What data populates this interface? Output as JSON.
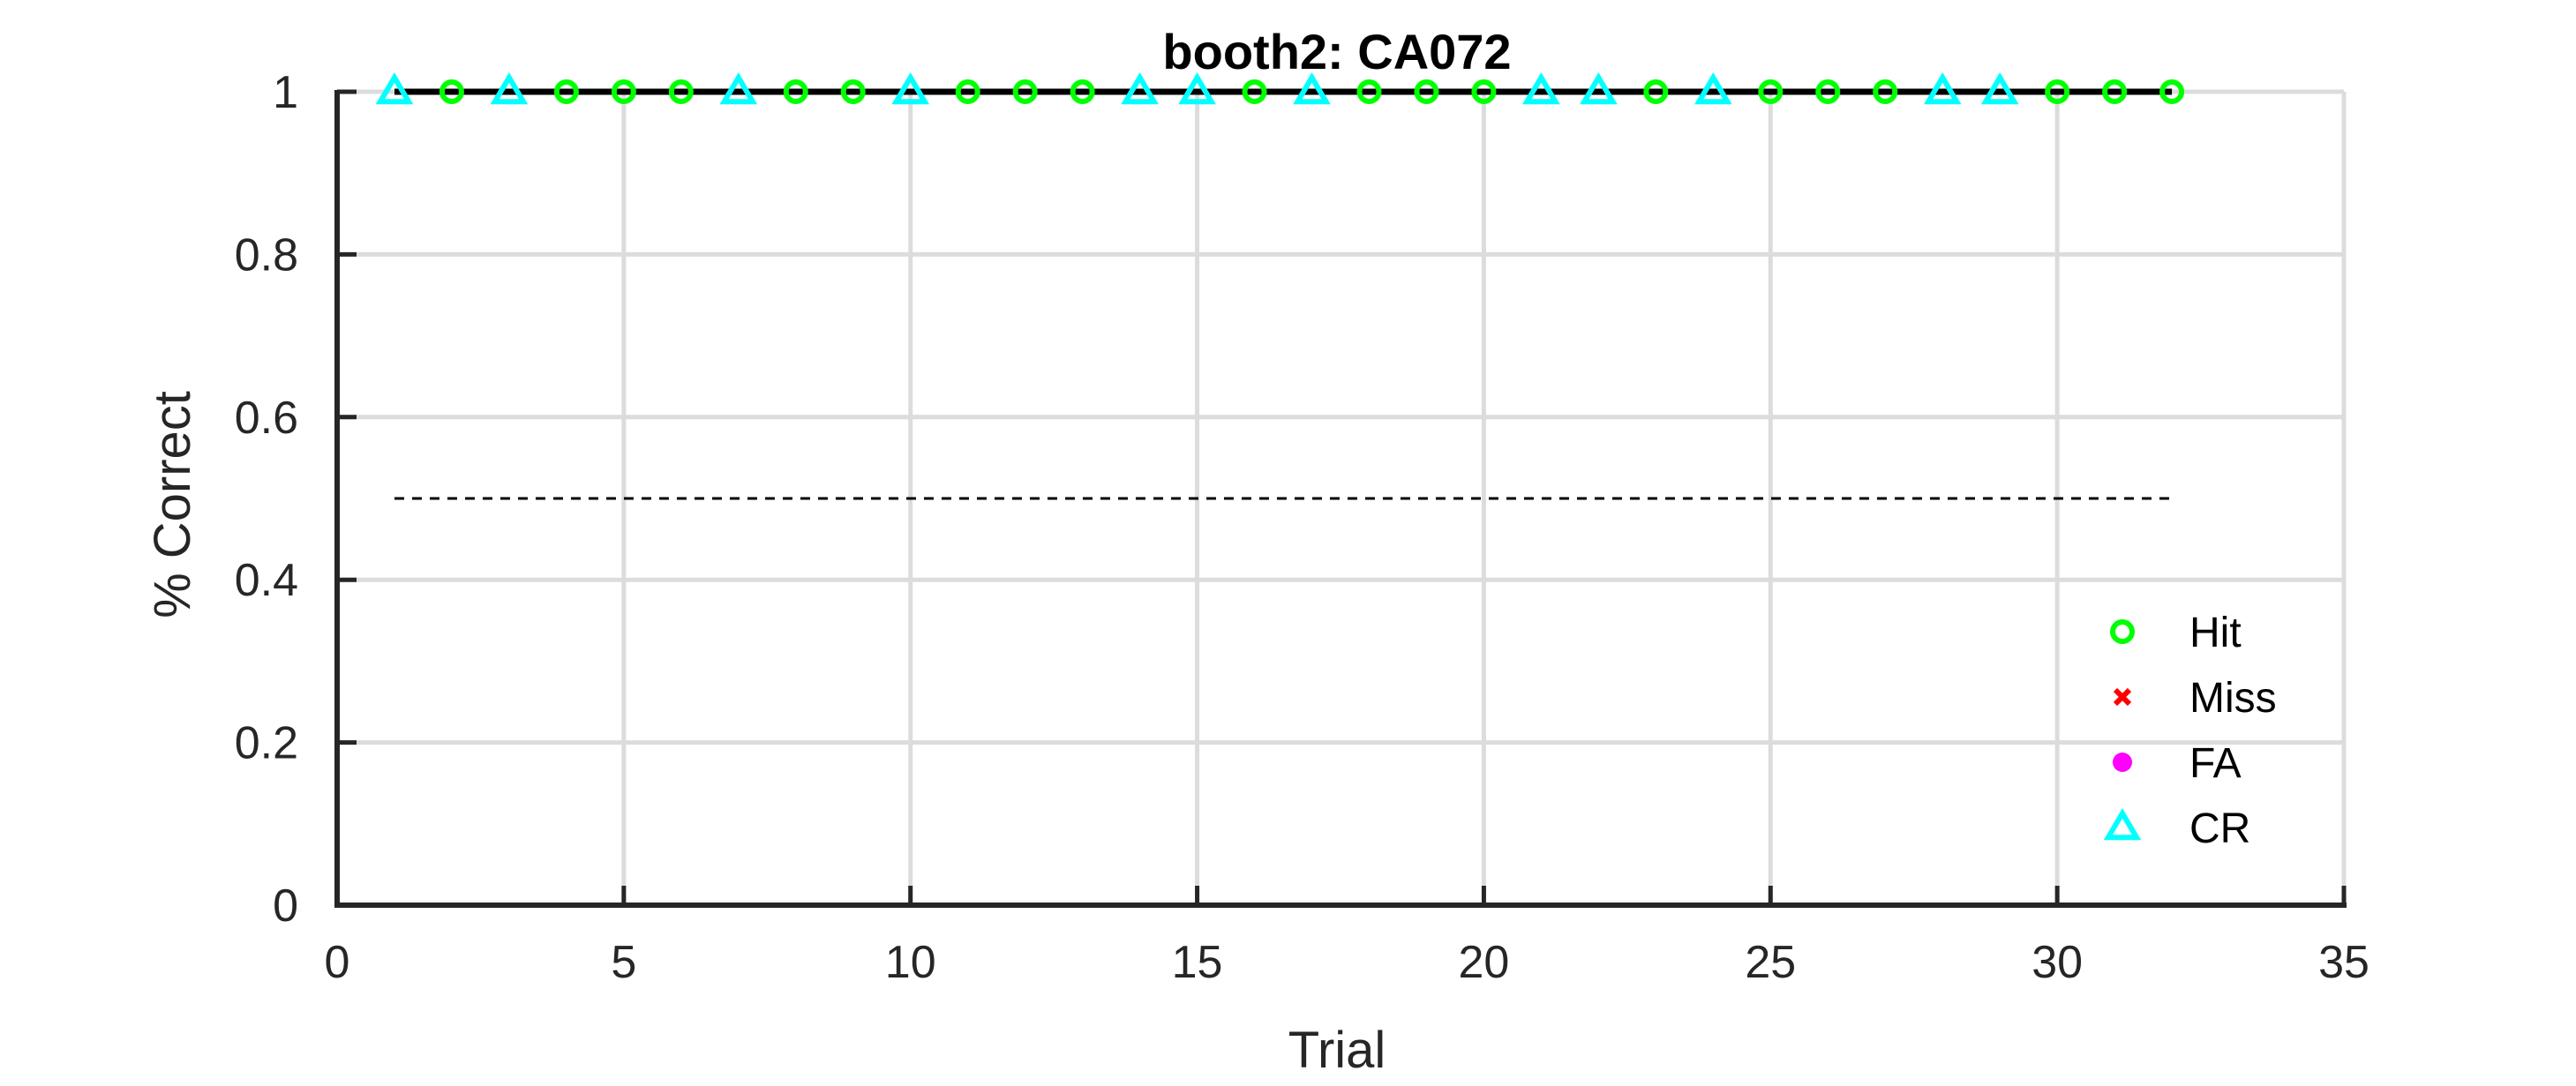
{
  "chart_data": {
    "type": "scatter",
    "title": "booth2: CA072",
    "xlabel": "Trial",
    "ylabel": "% Correct",
    "xlim": [
      0,
      35
    ],
    "ylim": [
      0,
      1
    ],
    "xticks": [
      0,
      5,
      10,
      15,
      20,
      25,
      30,
      35
    ],
    "yticks": [
      0,
      0.2,
      0.4,
      0.6,
      0.8,
      1
    ],
    "ytick_labels": [
      "0",
      "0.2",
      "0.4",
      "0.6",
      "0.8",
      "1"
    ],
    "grid": true,
    "legend_position": "bottom-right",
    "reference_line": {
      "y": 0.5,
      "x_range": [
        1,
        32
      ],
      "style": "dashed",
      "color": "#000000"
    },
    "performance_line": {
      "x": [
        1,
        32
      ],
      "y": [
        1,
        1
      ],
      "color": "#000000"
    },
    "series": [
      {
        "name": "Hit",
        "marker": "circle",
        "color": "#00ff00",
        "x": [
          2,
          4,
          5,
          6,
          8,
          9,
          11,
          12,
          13,
          16,
          18,
          19,
          20,
          23,
          25,
          26,
          27,
          30,
          31,
          32
        ],
        "y": [
          1,
          1,
          1,
          1,
          1,
          1,
          1,
          1,
          1,
          1,
          1,
          1,
          1,
          1,
          1,
          1,
          1,
          1,
          1,
          1
        ]
      },
      {
        "name": "Miss",
        "marker": "x",
        "color": "#ff0000",
        "x": [],
        "y": []
      },
      {
        "name": "FA",
        "marker": "dot",
        "color": "#ff00ff",
        "x": [],
        "y": []
      },
      {
        "name": "CR",
        "marker": "triangle",
        "color": "#00ffff",
        "x": [
          1,
          3,
          7,
          10,
          14,
          15,
          17,
          21,
          22,
          24,
          28,
          29
        ],
        "y": [
          1,
          1,
          1,
          1,
          1,
          1,
          1,
          1,
          1,
          1,
          1,
          1
        ]
      }
    ]
  }
}
